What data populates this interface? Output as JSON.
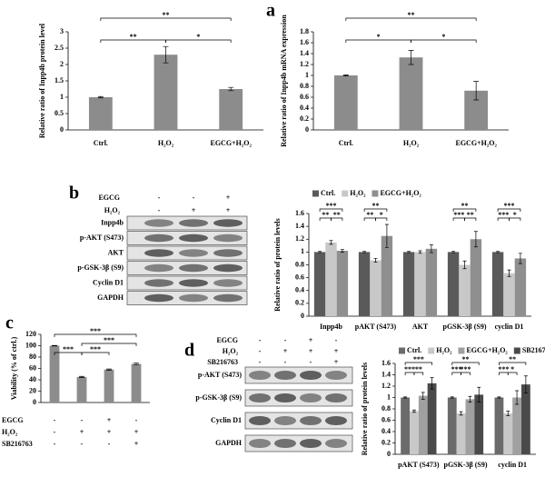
{
  "panel_labels": [
    "a",
    "b",
    "c",
    "d"
  ],
  "blot_b": {
    "treatments": [
      {
        "name": "EGCG",
        "signs": [
          "-",
          "-",
          "+"
        ]
      },
      {
        "name": "H₂O₂",
        "signs": [
          "-",
          "+",
          "+"
        ]
      }
    ],
    "rows": [
      "Inpp4b",
      "p-AKT (S473)",
      "AKT",
      "p-GSK-3β (S9)",
      "Cyclin D1",
      "GAPDH"
    ]
  },
  "treatment_c": [
    {
      "name": "EGCG",
      "signs": [
        "-",
        "-",
        "+",
        "-"
      ]
    },
    {
      "name": "H₂O₂",
      "signs": [
        "-",
        "+",
        "+",
        "+"
      ]
    },
    {
      "name": "SB216763",
      "signs": [
        "-",
        "-",
        "-",
        "+"
      ]
    }
  ],
  "blot_d": {
    "treatments": [
      {
        "name": "EGCG",
        "signs": [
          "-",
          "-",
          "+",
          "-"
        ]
      },
      {
        "name": "H₂O₂",
        "signs": [
          "-",
          "+",
          "+",
          "+"
        ]
      },
      {
        "name": "SB216763",
        "signs": [
          "-",
          "-",
          "-",
          "+"
        ]
      }
    ],
    "rows": [
      "p-AKT (S473)",
      "p-GSK-3β (S9)",
      "Cyclin D1",
      "GAPDH"
    ]
  },
  "chart_data": [
    {
      "type": "bar",
      "categories": [
        "Ctrl.",
        "H₂O₂",
        "EGCG+H₂O₂"
      ],
      "values": [
        1,
        2.3,
        1.25
      ],
      "errors": [
        0.02,
        0.25,
        0.05
      ],
      "color": "#8c8c8c",
      "ylabel": "Relative ratio of Inpp4b protein level",
      "ylim": [
        0,
        3
      ],
      "yticks": [
        0,
        0.5,
        1,
        1.5,
        2,
        2.5,
        3
      ],
      "annotations": [
        {
          "text": "**",
          "between": [
            "Ctrl.",
            "EGCG+H₂O₂"
          ]
        },
        {
          "text": "**",
          "between": [
            "Ctrl.",
            "H₂O₂"
          ]
        },
        {
          "text": "*",
          "between": [
            "H₂O₂",
            "EGCG+H₂O₂"
          ]
        }
      ]
    },
    {
      "type": "bar",
      "categories": [
        "Ctrl.",
        "H₂O₂",
        "EGCG+H₂O₂"
      ],
      "values": [
        1,
        1.33,
        0.72
      ],
      "errors": [
        0.01,
        0.13,
        0.17
      ],
      "color": "#8c8c8c",
      "ylabel": "Relative ratio of Inpp4b mRNA expression",
      "ylim": [
        0,
        1.8
      ],
      "yticks": [
        0,
        0.2,
        0.4,
        0.6,
        0.8,
        1,
        1.2,
        1.4,
        1.6,
        1.8
      ],
      "annotations": [
        {
          "text": "**",
          "between": [
            "Ctrl.",
            "EGCG+H₂O₂"
          ]
        },
        {
          "text": "*",
          "between": [
            "Ctrl.",
            "H₂O₂"
          ]
        },
        {
          "text": "*",
          "between": [
            "H₂O₂",
            "EGCG+H₂O₂"
          ]
        }
      ]
    },
    {
      "type": "grouped_bar",
      "categories": [
        "Inpp4b",
        "pAKT (S473)",
        "AKT",
        "pGSK-3β (S9)",
        "cyclin D1"
      ],
      "ylabel": "Relative ratio of protein levels",
      "ylim": [
        0,
        1.6
      ],
      "yticks": [
        0,
        0.2,
        0.4,
        0.6,
        0.8,
        1,
        1.2,
        1.4,
        1.6
      ],
      "legend": "top",
      "series": [
        {
          "name": "Ctrl.",
          "color": "#5a5a5a",
          "values": [
            1,
            1,
            1,
            1,
            1
          ],
          "errors": [
            0.01,
            0.01,
            0.01,
            0.01,
            0.01
          ]
        },
        {
          "name": "H₂O₂",
          "color": "#c8c8c8",
          "values": [
            1.15,
            0.87,
            1,
            0.8,
            0.67
          ],
          "errors": [
            0.03,
            0.03,
            0.02,
            0.06,
            0.05
          ]
        },
        {
          "name": "EGCG+H₂O₂",
          "color": "#8f8f8f",
          "values": [
            1.02,
            1.25,
            1.05,
            1.2,
            0.9
          ],
          "errors": [
            0.02,
            0.18,
            0.06,
            0.12,
            0.08
          ]
        }
      ],
      "annotations": [
        {
          "text": "***",
          "group": "Inpp4b",
          "between": [
            "Ctrl.",
            "EGCG+H₂O₂"
          ]
        },
        {
          "text": "**",
          "group": "Inpp4b",
          "between": [
            "Ctrl.",
            "H₂O₂"
          ]
        },
        {
          "text": "**",
          "group": "Inpp4b",
          "between": [
            "H₂O₂",
            "EGCG+H₂O₂"
          ]
        },
        {
          "text": "**",
          "group": "pAKT (S473)",
          "between": [
            "Ctrl.",
            "EGCG+H₂O₂"
          ]
        },
        {
          "text": "**",
          "group": "pAKT (S473)",
          "between": [
            "Ctrl.",
            "H₂O₂"
          ]
        },
        {
          "text": "*",
          "group": "pAKT (S473)",
          "between": [
            "H₂O₂",
            "EGCG+H₂O₂"
          ]
        },
        {
          "text": "**",
          "group": "pGSK-3β (S9)",
          "between": [
            "Ctrl.",
            "EGCG+H₂O₂"
          ]
        },
        {
          "text": "***",
          "group": "pGSK-3β (S9)",
          "between": [
            "Ctrl.",
            "H₂O₂"
          ]
        },
        {
          "text": "**",
          "group": "pGSK-3β (S9)",
          "between": [
            "H₂O₂",
            "EGCG+H₂O₂"
          ]
        },
        {
          "text": "***",
          "group": "cyclin D1",
          "between": [
            "Ctrl.",
            "EGCG+H₂O₂"
          ]
        },
        {
          "text": "***",
          "group": "cyclin D1",
          "between": [
            "Ctrl.",
            "H₂O₂"
          ]
        },
        {
          "text": "*",
          "group": "cyclin D1",
          "between": [
            "H₂O₂",
            "EGCG+H₂O₂"
          ]
        }
      ]
    },
    {
      "type": "bar",
      "values": [
        100,
        45,
        58,
        68
      ],
      "errors": [
        0.5,
        1,
        1,
        1.5
      ],
      "color": "#8c8c8c",
      "ylabel": "Viability (% of ctrl.)",
      "ylim": [
        0,
        120
      ],
      "yticks": [
        0,
        20,
        40,
        60,
        80,
        100,
        120
      ],
      "annotations": [
        {
          "text": "***",
          "between": [
            0,
            3
          ]
        },
        {
          "text": "***",
          "between": [
            1,
            3
          ]
        },
        {
          "text": "***",
          "between": [
            0,
            1
          ]
        },
        {
          "text": "***",
          "between": [
            1,
            2
          ]
        }
      ]
    },
    {
      "type": "grouped_bar",
      "categories": [
        "pAKT (S473)",
        "pGSK-3β (S9)",
        "cyclin D1"
      ],
      "ylabel": "Relative ratio of protein levels",
      "ylim": [
        0,
        1.6
      ],
      "yticks": [
        0,
        0.2,
        0.4,
        0.6,
        0.8,
        1,
        1.2,
        1.4,
        1.6
      ],
      "legend": "top",
      "series": [
        {
          "name": "Ctrl.",
          "color": "#6b6b6b",
          "values": [
            1,
            1,
            1
          ],
          "errors": [
            0.01,
            0.01,
            0.01
          ]
        },
        {
          "name": "H₂O₂",
          "color": "#c8c8c8",
          "values": [
            0.76,
            0.72,
            0.72
          ],
          "errors": [
            0.02,
            0.03,
            0.04
          ]
        },
        {
          "name": "EGCG+H₂O₂",
          "color": "#a0a0a0",
          "values": [
            1.03,
            0.97,
            1
          ],
          "errors": [
            0.06,
            0.05,
            0.12
          ]
        },
        {
          "name": "SB216763+H₂O₂",
          "color": "#4a4a4a",
          "values": [
            1.25,
            1.05,
            1.23
          ],
          "errors": [
            0.1,
            0.13,
            0.15
          ]
        }
      ],
      "annotations": [
        {
          "text": "***",
          "group": "pAKT (S473)",
          "between": [
            "Ctrl.",
            "SB216763+H₂O₂"
          ]
        },
        {
          "text": "***",
          "group": "pAKT (S473)",
          "between": [
            "Ctrl.",
            "H₂O₂"
          ]
        },
        {
          "text": "**",
          "group": "pAKT (S473)",
          "between": [
            "H₂O₂",
            "EGCG+H₂O₂"
          ]
        },
        {
          "text": "**",
          "group": "pGSK-3β (S9)",
          "between": [
            "Ctrl.",
            "SB216763+H₂O₂"
          ]
        },
        {
          "text": "***",
          "group": "pGSK-3β (S9)",
          "between": [
            "Ctrl.",
            "H₂O₂"
          ]
        },
        {
          "text": "***",
          "group": "pGSK-3β (S9)",
          "between": [
            "H₂O₂",
            "EGCG+H₂O₂"
          ]
        },
        {
          "text": "**",
          "group": "cyclin D1",
          "between": [
            "Ctrl.",
            "SB216763+H₂O₂"
          ]
        },
        {
          "text": "***",
          "group": "cyclin D1",
          "between": [
            "Ctrl.",
            "H₂O₂"
          ]
        },
        {
          "text": "*",
          "group": "cyclin D1",
          "between": [
            "H₂O₂",
            "EGCG+H₂O₂"
          ]
        }
      ]
    }
  ]
}
